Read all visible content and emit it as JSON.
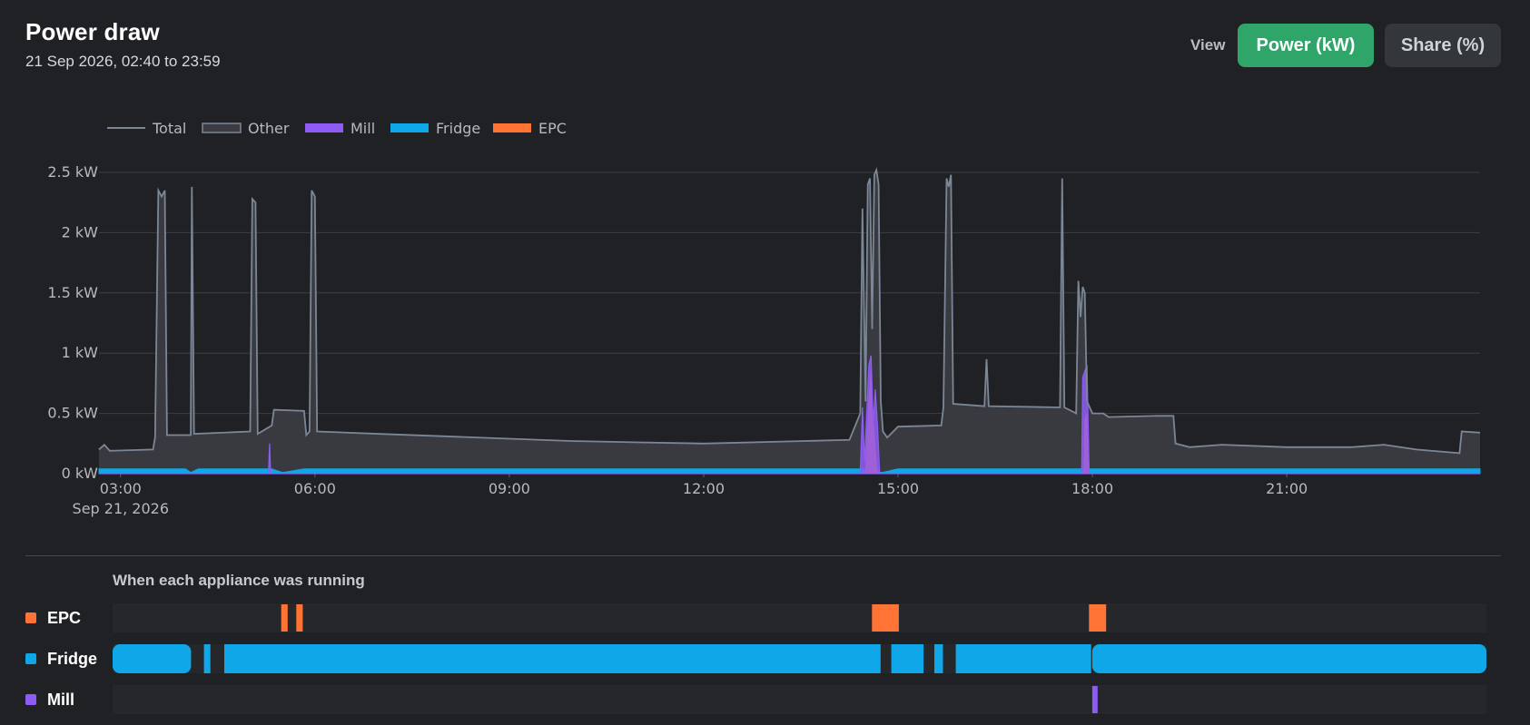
{
  "header": {
    "title": "Power draw",
    "subtitle": "21 Sep 2026, 02:40 to 23:59",
    "view_label": "View",
    "power_button_label": "Power (kW)",
    "share_button_label": "Share (%)"
  },
  "colors": {
    "total": "#7b8796",
    "other_fill": "#3a3c42",
    "mill": "#8e5cf5",
    "fridge": "#10a7e8",
    "epc": "#ff7434",
    "active_button": "#2fa56a"
  },
  "chart_data": {
    "type": "area",
    "x_unit": "time (24h)",
    "xlim": [
      "02:40",
      "23:59"
    ],
    "x_ticks": [
      "03:00",
      "06:00",
      "09:00",
      "12:00",
      "15:00",
      "18:00",
      "21:00"
    ],
    "x_tick_sublabel": "Sep 21, 2026",
    "ylim": [
      0,
      2.5
    ],
    "y_ticks": [
      "0 kW",
      "0.5 kW",
      "1 kW",
      "1.5 kW",
      "2 kW",
      "2.5 kW"
    ],
    "grid": true,
    "legend_position": "top-left",
    "legend": [
      "Total",
      "Other",
      "Mill",
      "Fridge",
      "EPC"
    ],
    "series": [
      {
        "name": "Total",
        "style": "line",
        "points": [
          [
            "02:40",
            0.2
          ],
          [
            "02:45",
            0.24
          ],
          [
            "02:50",
            0.19
          ],
          [
            "03:30",
            0.2
          ],
          [
            "03:32",
            0.3
          ],
          [
            "03:35",
            2.35
          ],
          [
            "03:38",
            2.3
          ],
          [
            "03:41",
            2.35
          ],
          [
            "03:43",
            0.32
          ],
          [
            "04:05",
            0.32
          ],
          [
            "04:06",
            2.38
          ],
          [
            "04:08",
            0.33
          ],
          [
            "05:00",
            0.35
          ],
          [
            "05:02",
            2.28
          ],
          [
            "05:05",
            2.25
          ],
          [
            "05:07",
            0.33
          ],
          [
            "05:20",
            0.4
          ],
          [
            "05:22",
            0.53
          ],
          [
            "05:50",
            0.52
          ],
          [
            "05:52",
            0.32
          ],
          [
            "05:55",
            0.35
          ],
          [
            "05:57",
            2.35
          ],
          [
            "06:00",
            2.3
          ],
          [
            "06:02",
            0.35
          ],
          [
            "07:00",
            0.33
          ],
          [
            "08:00",
            0.31
          ],
          [
            "09:00",
            0.29
          ],
          [
            "10:00",
            0.27
          ],
          [
            "11:00",
            0.26
          ],
          [
            "12:00",
            0.25
          ],
          [
            "13:30",
            0.27
          ],
          [
            "14:15",
            0.28
          ],
          [
            "14:25",
            0.5
          ],
          [
            "14:27",
            2.2
          ],
          [
            "14:30",
            0.6
          ],
          [
            "14:32",
            2.4
          ],
          [
            "14:34",
            2.45
          ],
          [
            "14:36",
            1.2
          ],
          [
            "14:38",
            2.48
          ],
          [
            "14:40",
            2.52
          ],
          [
            "14:42",
            2.4
          ],
          [
            "14:44",
            0.6
          ],
          [
            "14:46",
            0.35
          ],
          [
            "14:50",
            0.3
          ],
          [
            "15:00",
            0.39
          ],
          [
            "15:40",
            0.4
          ],
          [
            "15:42",
            0.55
          ],
          [
            "15:45",
            2.45
          ],
          [
            "15:47",
            2.38
          ],
          [
            "15:49",
            2.48
          ],
          [
            "15:51",
            0.58
          ],
          [
            "16:20",
            0.56
          ],
          [
            "16:22",
            0.95
          ],
          [
            "16:24",
            0.56
          ],
          [
            "17:30",
            0.55
          ],
          [
            "17:32",
            2.45
          ],
          [
            "17:34",
            0.55
          ],
          [
            "17:45",
            0.5
          ],
          [
            "17:47",
            1.6
          ],
          [
            "17:49",
            1.3
          ],
          [
            "17:51",
            1.55
          ],
          [
            "17:53",
            1.5
          ],
          [
            "17:55",
            0.6
          ],
          [
            "18:00",
            0.5
          ],
          [
            "18:10",
            0.5
          ],
          [
            "18:15",
            0.47
          ],
          [
            "19:00",
            0.48
          ],
          [
            "19:15",
            0.48
          ],
          [
            "19:17",
            0.25
          ],
          [
            "19:30",
            0.22
          ],
          [
            "20:00",
            0.24
          ],
          [
            "21:00",
            0.22
          ],
          [
            "22:00",
            0.22
          ],
          [
            "22:30",
            0.24
          ],
          [
            "23:00",
            0.2
          ],
          [
            "23:40",
            0.17
          ],
          [
            "23:42",
            0.35
          ],
          [
            "23:59",
            0.34
          ]
        ]
      },
      {
        "name": "Other",
        "style": "area",
        "same_as": "Total"
      },
      {
        "name": "Mill",
        "style": "area",
        "points": [
          [
            "02:40",
            0
          ],
          [
            "05:17",
            0
          ],
          [
            "05:18",
            0.25
          ],
          [
            "05:19",
            0
          ],
          [
            "14:25",
            0
          ],
          [
            "14:27",
            0.55
          ],
          [
            "14:29",
            0.1
          ],
          [
            "14:33",
            0.9
          ],
          [
            "14:35",
            0.98
          ],
          [
            "14:37",
            0.4
          ],
          [
            "14:39",
            0.7
          ],
          [
            "14:41",
            0.4
          ],
          [
            "14:43",
            0
          ],
          [
            "17:50",
            0
          ],
          [
            "17:51",
            0.8
          ],
          [
            "17:53",
            0.85
          ],
          [
            "17:55",
            0.9
          ],
          [
            "17:57",
            0
          ],
          [
            "23:59",
            0
          ]
        ]
      },
      {
        "name": "Fridge",
        "style": "area",
        "points": [
          [
            "02:40",
            0.04
          ],
          [
            "04:00",
            0.04
          ],
          [
            "04:05",
            0.01
          ],
          [
            "04:12",
            0.04
          ],
          [
            "05:20",
            0.04
          ],
          [
            "05:30",
            0.01
          ],
          [
            "05:50",
            0.04
          ],
          [
            "09:00",
            0.04
          ],
          [
            "14:30",
            0.04
          ],
          [
            "14:45",
            0.01
          ],
          [
            "15:00",
            0.04
          ],
          [
            "18:00",
            0.04
          ],
          [
            "23:59",
            0.04
          ]
        ]
      },
      {
        "name": "EPC",
        "style": "area",
        "points": [
          [
            "02:40",
            0
          ],
          [
            "14:30",
            0
          ],
          [
            "14:31",
            0.25
          ],
          [
            "14:33",
            0.6
          ],
          [
            "14:35",
            0.85
          ],
          [
            "14:37",
            0.45
          ],
          [
            "14:39",
            0.2
          ],
          [
            "14:41",
            0
          ],
          [
            "17:52",
            0
          ],
          [
            "17:53",
            0.45
          ],
          [
            "17:55",
            0.5
          ],
          [
            "17:57",
            0
          ],
          [
            "23:59",
            0
          ]
        ]
      }
    ]
  },
  "timeline": {
    "title": "When each appliance was running",
    "rows": [
      {
        "name": "EPC",
        "intervals": [
          [
            "05:17",
            "05:23"
          ],
          [
            "05:31",
            "05:37"
          ],
          [
            "14:27",
            "14:52"
          ],
          [
            "17:49",
            "18:05"
          ]
        ]
      },
      {
        "name": "Fridge",
        "intervals": [
          [
            "02:40",
            "03:53"
          ],
          [
            "04:05",
            "04:11"
          ],
          [
            "04:24",
            "14:35"
          ],
          [
            "14:45",
            "15:15"
          ],
          [
            "15:25",
            "15:33"
          ],
          [
            "15:45",
            "17:51"
          ],
          [
            "17:52",
            "23:59"
          ]
        ]
      },
      {
        "name": "Mill",
        "intervals": [
          [
            "17:52",
            "17:57"
          ]
        ]
      }
    ]
  }
}
